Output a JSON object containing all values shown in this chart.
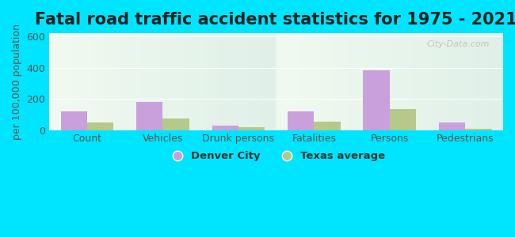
{
  "title": "Fatal road traffic accident statistics for 1975 - 2021",
  "ylabel": "per 100,000 population",
  "categories": [
    "Count",
    "Vehicles",
    "Drunk persons",
    "Fatalities",
    "Persons",
    "Pedestrians"
  ],
  "denver_city": [
    120,
    180,
    30,
    120,
    385,
    50
  ],
  "texas_avg": [
    50,
    75,
    20,
    55,
    135,
    10
  ],
  "denver_color": "#c9a0dc",
  "texas_color": "#b5c98a",
  "ylim": [
    0,
    620
  ],
  "yticks": [
    0,
    200,
    400,
    600
  ],
  "background_outer": "#00e5ff",
  "background_inner_top": "#f0faf0",
  "background_inner_bottom": "#e0f0e8",
  "bar_width": 0.35,
  "title_fontsize": 15,
  "axis_fontsize": 9,
  "legend_labels": [
    "Denver City",
    "Texas average"
  ],
  "watermark": "City-Data.com"
}
